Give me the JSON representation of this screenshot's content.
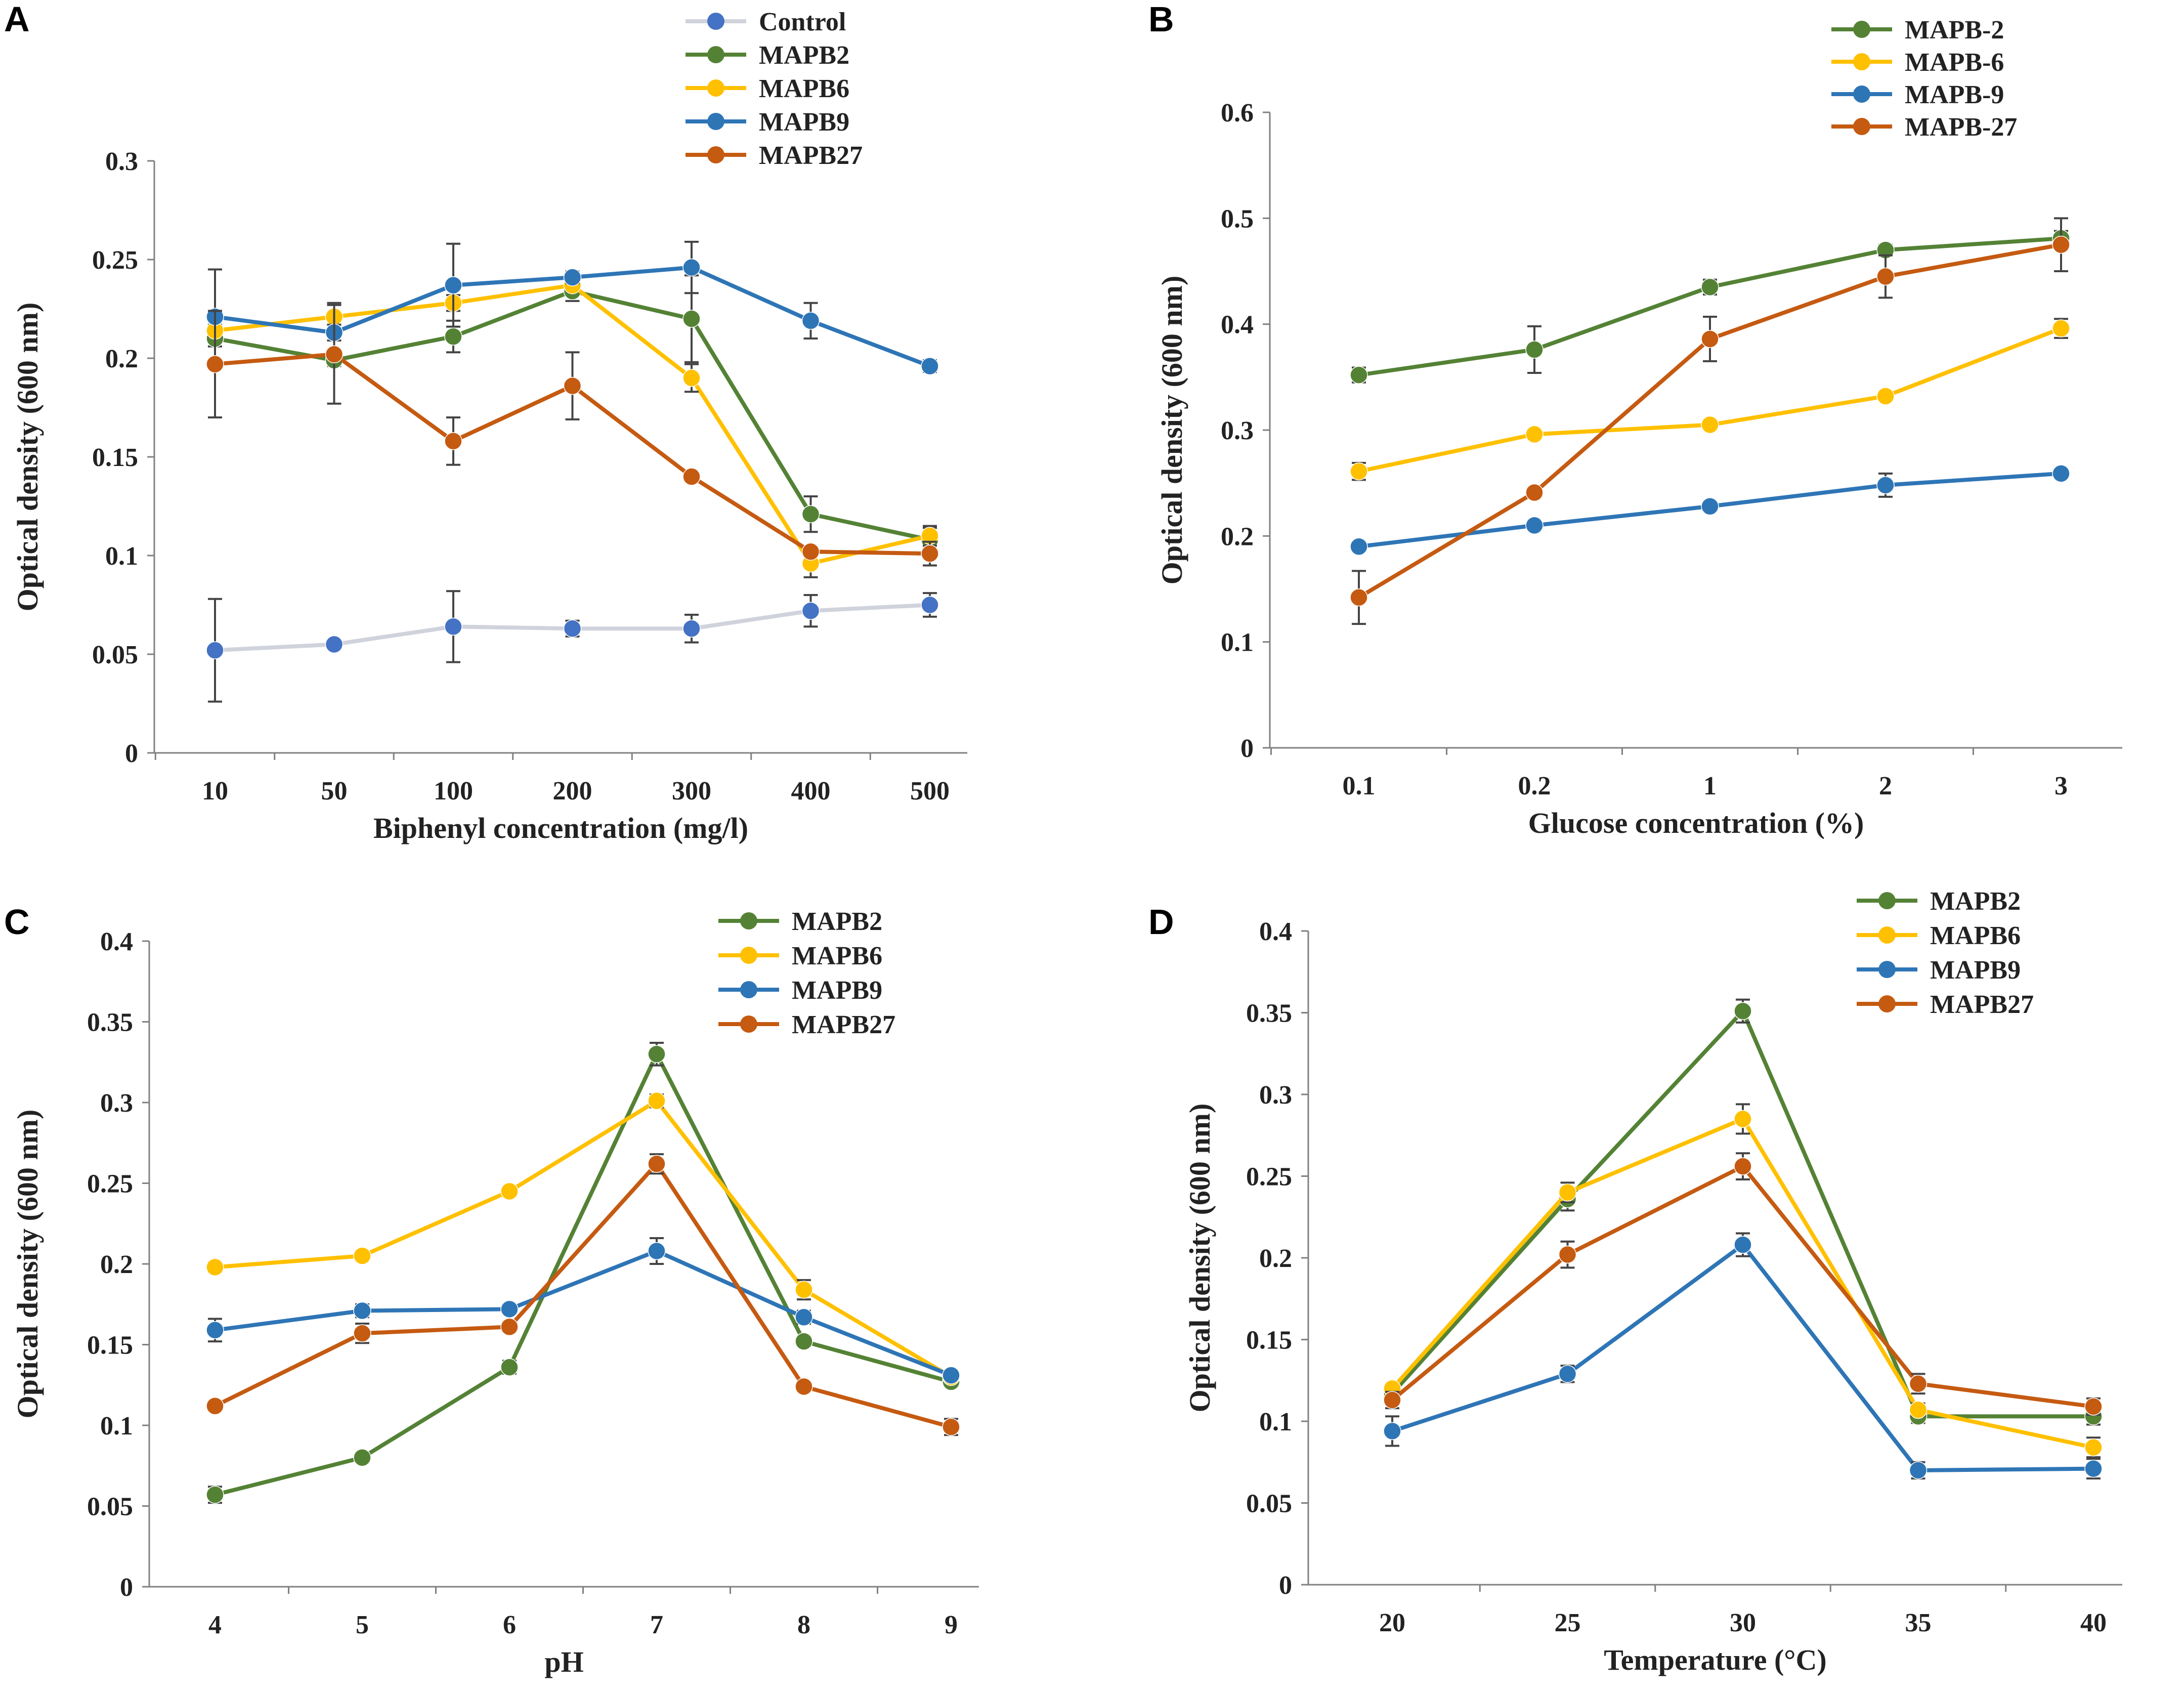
{
  "figure": {
    "panels": [
      "A",
      "B",
      "C",
      "D"
    ]
  },
  "colors": {
    "control": "#4472C4",
    "control_line": "#D0D3DC",
    "mapb2": "#548235",
    "mapb6": "#FFC000",
    "mapb9": "#2E75B6",
    "mapb27": "#C55A11",
    "axis": "#808080",
    "errorbar": "#444444"
  },
  "chart_data": [
    {
      "panel": "A",
      "type": "line",
      "xlabel": "Biphenyl concentration (mg/l)",
      "ylabel": "Optical density (600 nm)",
      "categories": [
        "10",
        "50",
        "100",
        "200",
        "300",
        "400",
        "500"
      ],
      "ylim": [
        0,
        0.3
      ],
      "yticks": [
        "0",
        "0.05",
        "0.1",
        "0.15",
        "0.2",
        "0.25",
        "0.3"
      ],
      "legend_position": "top-right",
      "series": [
        {
          "name": "Control",
          "color_key": "control",
          "values": [
            0.052,
            0.055,
            0.064,
            0.063,
            0.063,
            0.072,
            0.075
          ],
          "errors": [
            0.026,
            0.002,
            0.018,
            0.004,
            0.007,
            0.008,
            0.006
          ]
        },
        {
          "name": "MAPB2",
          "color_key": "mapb2",
          "values": [
            0.21,
            0.199,
            0.211,
            0.234,
            0.22,
            0.121,
            0.108
          ],
          "errors": [
            0.004,
            0.003,
            0.008,
            0.005,
            0.022,
            0.009,
            0.006
          ]
        },
        {
          "name": "MAPB6",
          "color_key": "mapb6",
          "values": [
            0.214,
            0.221,
            0.228,
            0.237,
            0.19,
            0.096,
            0.11
          ],
          "errors": [
            0.003,
            0.007,
            0.004,
            0.002,
            0.007,
            0.007,
            0.005
          ]
        },
        {
          "name": "MAPB9",
          "color_key": "mapb9",
          "values": [
            0.221,
            0.213,
            0.237,
            0.241,
            0.246,
            0.219,
            0.196
          ],
          "errors": [
            0.024,
            0.004,
            0.021,
            0.003,
            0.013,
            0.009,
            0.003
          ]
        },
        {
          "name": "MAPB27",
          "color_key": "mapb27",
          "values": [
            0.197,
            0.202,
            0.158,
            0.186,
            0.14,
            0.102,
            0.101
          ],
          "errors": [
            0.027,
            0.025,
            0.012,
            0.017,
            0.002,
            0.002,
            0.006
          ]
        }
      ]
    },
    {
      "panel": "B",
      "type": "line",
      "xlabel": "Glucose concentration (%)",
      "ylabel": "Optical density (600 nm)",
      "categories": [
        "0.1",
        "0.2",
        "1",
        "2",
        "3"
      ],
      "ylim": [
        0,
        0.6
      ],
      "yticks": [
        "0",
        "0.1",
        "0.2",
        "0.3",
        "0.4",
        "0.5",
        "0.6"
      ],
      "legend_position": "top-right",
      "series": [
        {
          "name": "MAPB-2",
          "color_key": "mapb2",
          "values": [
            0.352,
            0.376,
            0.435,
            0.47,
            0.481
          ],
          "errors": [
            0.007,
            0.022,
            0.007,
            0.005,
            0.007
          ]
        },
        {
          "name": "MAPB-6",
          "color_key": "mapb6",
          "values": [
            0.261,
            0.296,
            0.305,
            0.332,
            0.396
          ],
          "errors": [
            0.008,
            0.004,
            0.004,
            0.004,
            0.009
          ]
        },
        {
          "name": "MAPB-9",
          "color_key": "mapb9",
          "values": [
            0.19,
            0.21,
            0.228,
            0.248,
            0.259
          ],
          "errors": [
            0.004,
            0.003,
            0.002,
            0.011,
            0.004
          ]
        },
        {
          "name": "MAPB-27",
          "color_key": "mapb27",
          "values": [
            0.142,
            0.241,
            0.386,
            0.445,
            0.475
          ],
          "errors": [
            0.025,
            0.004,
            0.021,
            0.02,
            0.025
          ]
        }
      ]
    },
    {
      "panel": "C",
      "type": "line",
      "xlabel": "pH",
      "ylabel": "Optical density (600 nm)",
      "categories": [
        "4",
        "5",
        "6",
        "7",
        "8",
        "9"
      ],
      "ylim": [
        0,
        0.4
      ],
      "yticks": [
        "0",
        "0.05",
        "0.1",
        "0.15",
        "0.2",
        "0.25",
        "0.3",
        "0.35",
        "0.4"
      ],
      "legend_position": "top-right",
      "series": [
        {
          "name": "MAPB2",
          "color_key": "mapb2",
          "values": [
            0.057,
            0.08,
            0.136,
            0.33,
            0.152,
            0.127
          ],
          "errors": [
            0.005,
            0.003,
            0.004,
            0.007,
            0.003,
            0.003
          ]
        },
        {
          "name": "MAPB6",
          "color_key": "mapb6",
          "values": [
            0.198,
            0.205,
            0.245,
            0.301,
            0.184,
            0.13
          ],
          "errors": [
            0.003,
            0.003,
            0.003,
            0.004,
            0.006,
            0.003
          ]
        },
        {
          "name": "MAPB9",
          "color_key": "mapb9",
          "values": [
            0.159,
            0.171,
            0.172,
            0.208,
            0.167,
            0.131
          ],
          "errors": [
            0.007,
            0.004,
            0.003,
            0.008,
            0.004,
            0.003
          ]
        },
        {
          "name": "MAPB27",
          "color_key": "mapb27",
          "values": [
            0.112,
            0.157,
            0.161,
            0.262,
            0.124,
            0.099
          ],
          "errors": [
            0.003,
            0.006,
            0.003,
            0.006,
            0.003,
            0.005
          ]
        }
      ]
    },
    {
      "panel": "D",
      "type": "line",
      "xlabel": "Temperature (°C)",
      "ylabel": "Optical density (600 nm)",
      "categories": [
        "20",
        "25",
        "30",
        "35",
        "40"
      ],
      "ylim": [
        0,
        0.4
      ],
      "yticks": [
        "0",
        "0.05",
        "0.1",
        "0.15",
        "0.2",
        "0.25",
        "0.3",
        "0.35",
        "0.4"
      ],
      "legend_position": "top-right",
      "series": [
        {
          "name": "MAPB2",
          "color_key": "mapb2",
          "values": [
            0.117,
            0.236,
            0.351,
            0.103,
            0.103
          ],
          "errors": [
            0.004,
            0.007,
            0.007,
            0.004,
            0.005
          ]
        },
        {
          "name": "MAPB6",
          "color_key": "mapb6",
          "values": [
            0.12,
            0.24,
            0.285,
            0.107,
            0.084
          ],
          "errors": [
            0.003,
            0.006,
            0.009,
            0.004,
            0.006
          ]
        },
        {
          "name": "MAPB9",
          "color_key": "mapb9",
          "values": [
            0.094,
            0.129,
            0.208,
            0.07,
            0.071
          ],
          "errors": [
            0.009,
            0.005,
            0.007,
            0.005,
            0.006
          ]
        },
        {
          "name": "MAPB27",
          "color_key": "mapb27",
          "values": [
            0.113,
            0.202,
            0.256,
            0.123,
            0.109
          ],
          "errors": [
            0.005,
            0.008,
            0.008,
            0.006,
            0.005
          ]
        }
      ]
    }
  ]
}
